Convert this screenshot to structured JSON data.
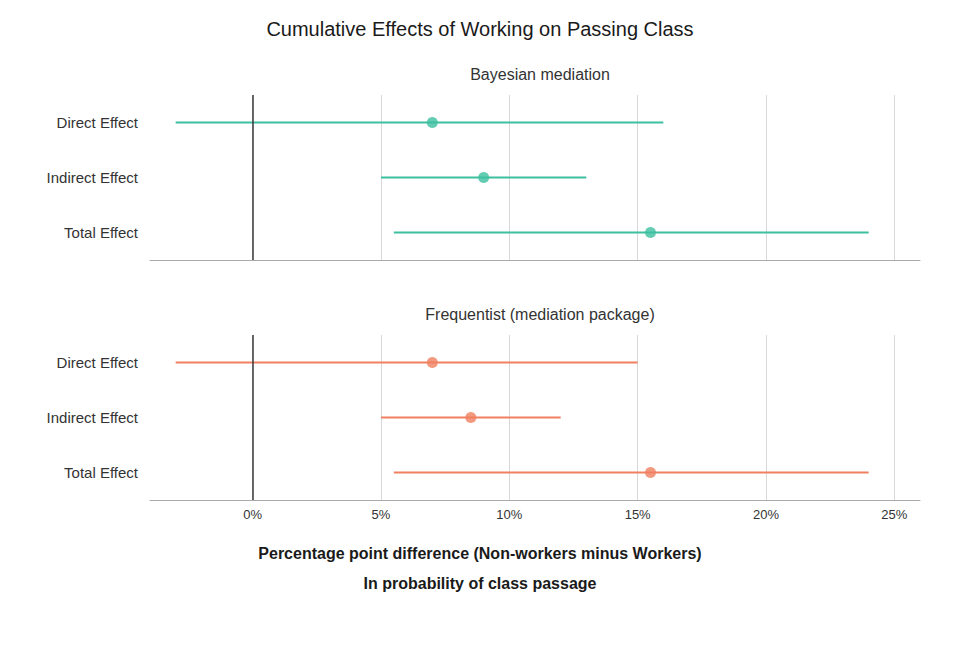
{
  "chart_data": [
    {
      "type": "forest",
      "title": "Cumulative Effects of Working on Passing Class",
      "subtitle": "Bayesian mediation",
      "orientation": "horizontal",
      "categories": [
        "Direct Effect",
        "Indirect Effect",
        "Total Effect"
      ],
      "values": [
        7.0,
        9.0,
        15.5
      ],
      "ci_low": [
        -3.0,
        5.0,
        5.5
      ],
      "ci_high": [
        16.0,
        13.0,
        24.0
      ],
      "color": "#3dbfa0",
      "xlim": [
        -4,
        26
      ],
      "xticks": [
        {
          "value": 0,
          "label": "0%"
        },
        {
          "value": 5,
          "label": "5%"
        },
        {
          "value": 10,
          "label": "10%"
        },
        {
          "value": 15,
          "label": "15%"
        },
        {
          "value": 20,
          "label": "20%"
        },
        {
          "value": 25,
          "label": "25%"
        }
      ],
      "vline_x": 0,
      "grid": true,
      "tick_labels": "y"
    },
    {
      "type": "forest",
      "subtitle": "Frequentist (mediation package)",
      "orientation": "horizontal",
      "categories": [
        "Direct Effect",
        "Indirect Effect",
        "Total Effect"
      ],
      "values": [
        7.0,
        8.5,
        15.5
      ],
      "ci_low": [
        -3.0,
        5.0,
        5.5
      ],
      "ci_high": [
        15.0,
        12.0,
        24.0
      ],
      "color": "#f08060",
      "xlim": [
        -4,
        26
      ],
      "xticks": [
        {
          "value": 0,
          "label": "0%"
        },
        {
          "value": 5,
          "label": "5%"
        },
        {
          "value": 10,
          "label": "10%"
        },
        {
          "value": 15,
          "label": "15%"
        },
        {
          "value": 20,
          "label": "20%"
        },
        {
          "value": 25,
          "label": "25%"
        }
      ],
      "vline_x": 0,
      "grid": true,
      "tick_labels": true,
      "xlabel": [
        "Percentage point difference (Non-workers minus Workers)",
        "In probability of class passage"
      ]
    }
  ]
}
